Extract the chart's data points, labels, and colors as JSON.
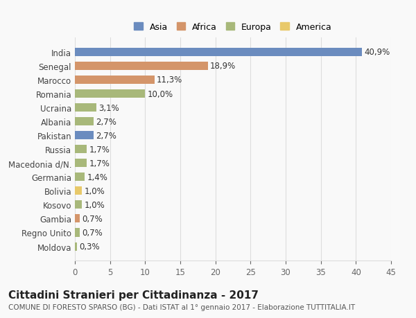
{
  "countries": [
    "India",
    "Senegal",
    "Marocco",
    "Romania",
    "Ucraina",
    "Albania",
    "Pakistan",
    "Russia",
    "Macedonia d/N.",
    "Germania",
    "Bolivia",
    "Kosovo",
    "Gambia",
    "Regno Unito",
    "Moldova"
  ],
  "values": [
    40.9,
    18.9,
    11.3,
    10.0,
    3.1,
    2.7,
    2.7,
    1.7,
    1.7,
    1.4,
    1.0,
    1.0,
    0.7,
    0.7,
    0.3
  ],
  "labels": [
    "40,9%",
    "18,9%",
    "11,3%",
    "10,0%",
    "3,1%",
    "2,7%",
    "2,7%",
    "1,7%",
    "1,7%",
    "1,4%",
    "1,0%",
    "1,0%",
    "0,7%",
    "0,7%",
    "0,3%"
  ],
  "continents": [
    "Asia",
    "Africa",
    "Africa",
    "Europa",
    "Europa",
    "Europa",
    "Asia",
    "Europa",
    "Europa",
    "Europa",
    "America",
    "Europa",
    "Africa",
    "Europa",
    "Europa"
  ],
  "colors": {
    "Asia": "#6b8cbf",
    "Africa": "#d4956a",
    "Europa": "#a8b87a",
    "America": "#e8c96a"
  },
  "xlim": [
    0,
    45
  ],
  "xticks": [
    0,
    5,
    10,
    15,
    20,
    25,
    30,
    35,
    40,
    45
  ],
  "title_main": "Cittadini Stranieri per Cittadinanza - 2017",
  "title_sub": "COMUNE DI FORESTO SPARSO (BG) - Dati ISTAT al 1° gennaio 2017 - Elaborazione TUTTITALIA.IT",
  "background_color": "#f9f9f9",
  "grid_color": "#dddddd",
  "bar_height": 0.6,
  "label_fontsize": 8.5,
  "tick_fontsize": 8.5,
  "title_fontsize": 11,
  "subtitle_fontsize": 7.5,
  "legend_order": [
    "Asia",
    "Africa",
    "Europa",
    "America"
  ]
}
